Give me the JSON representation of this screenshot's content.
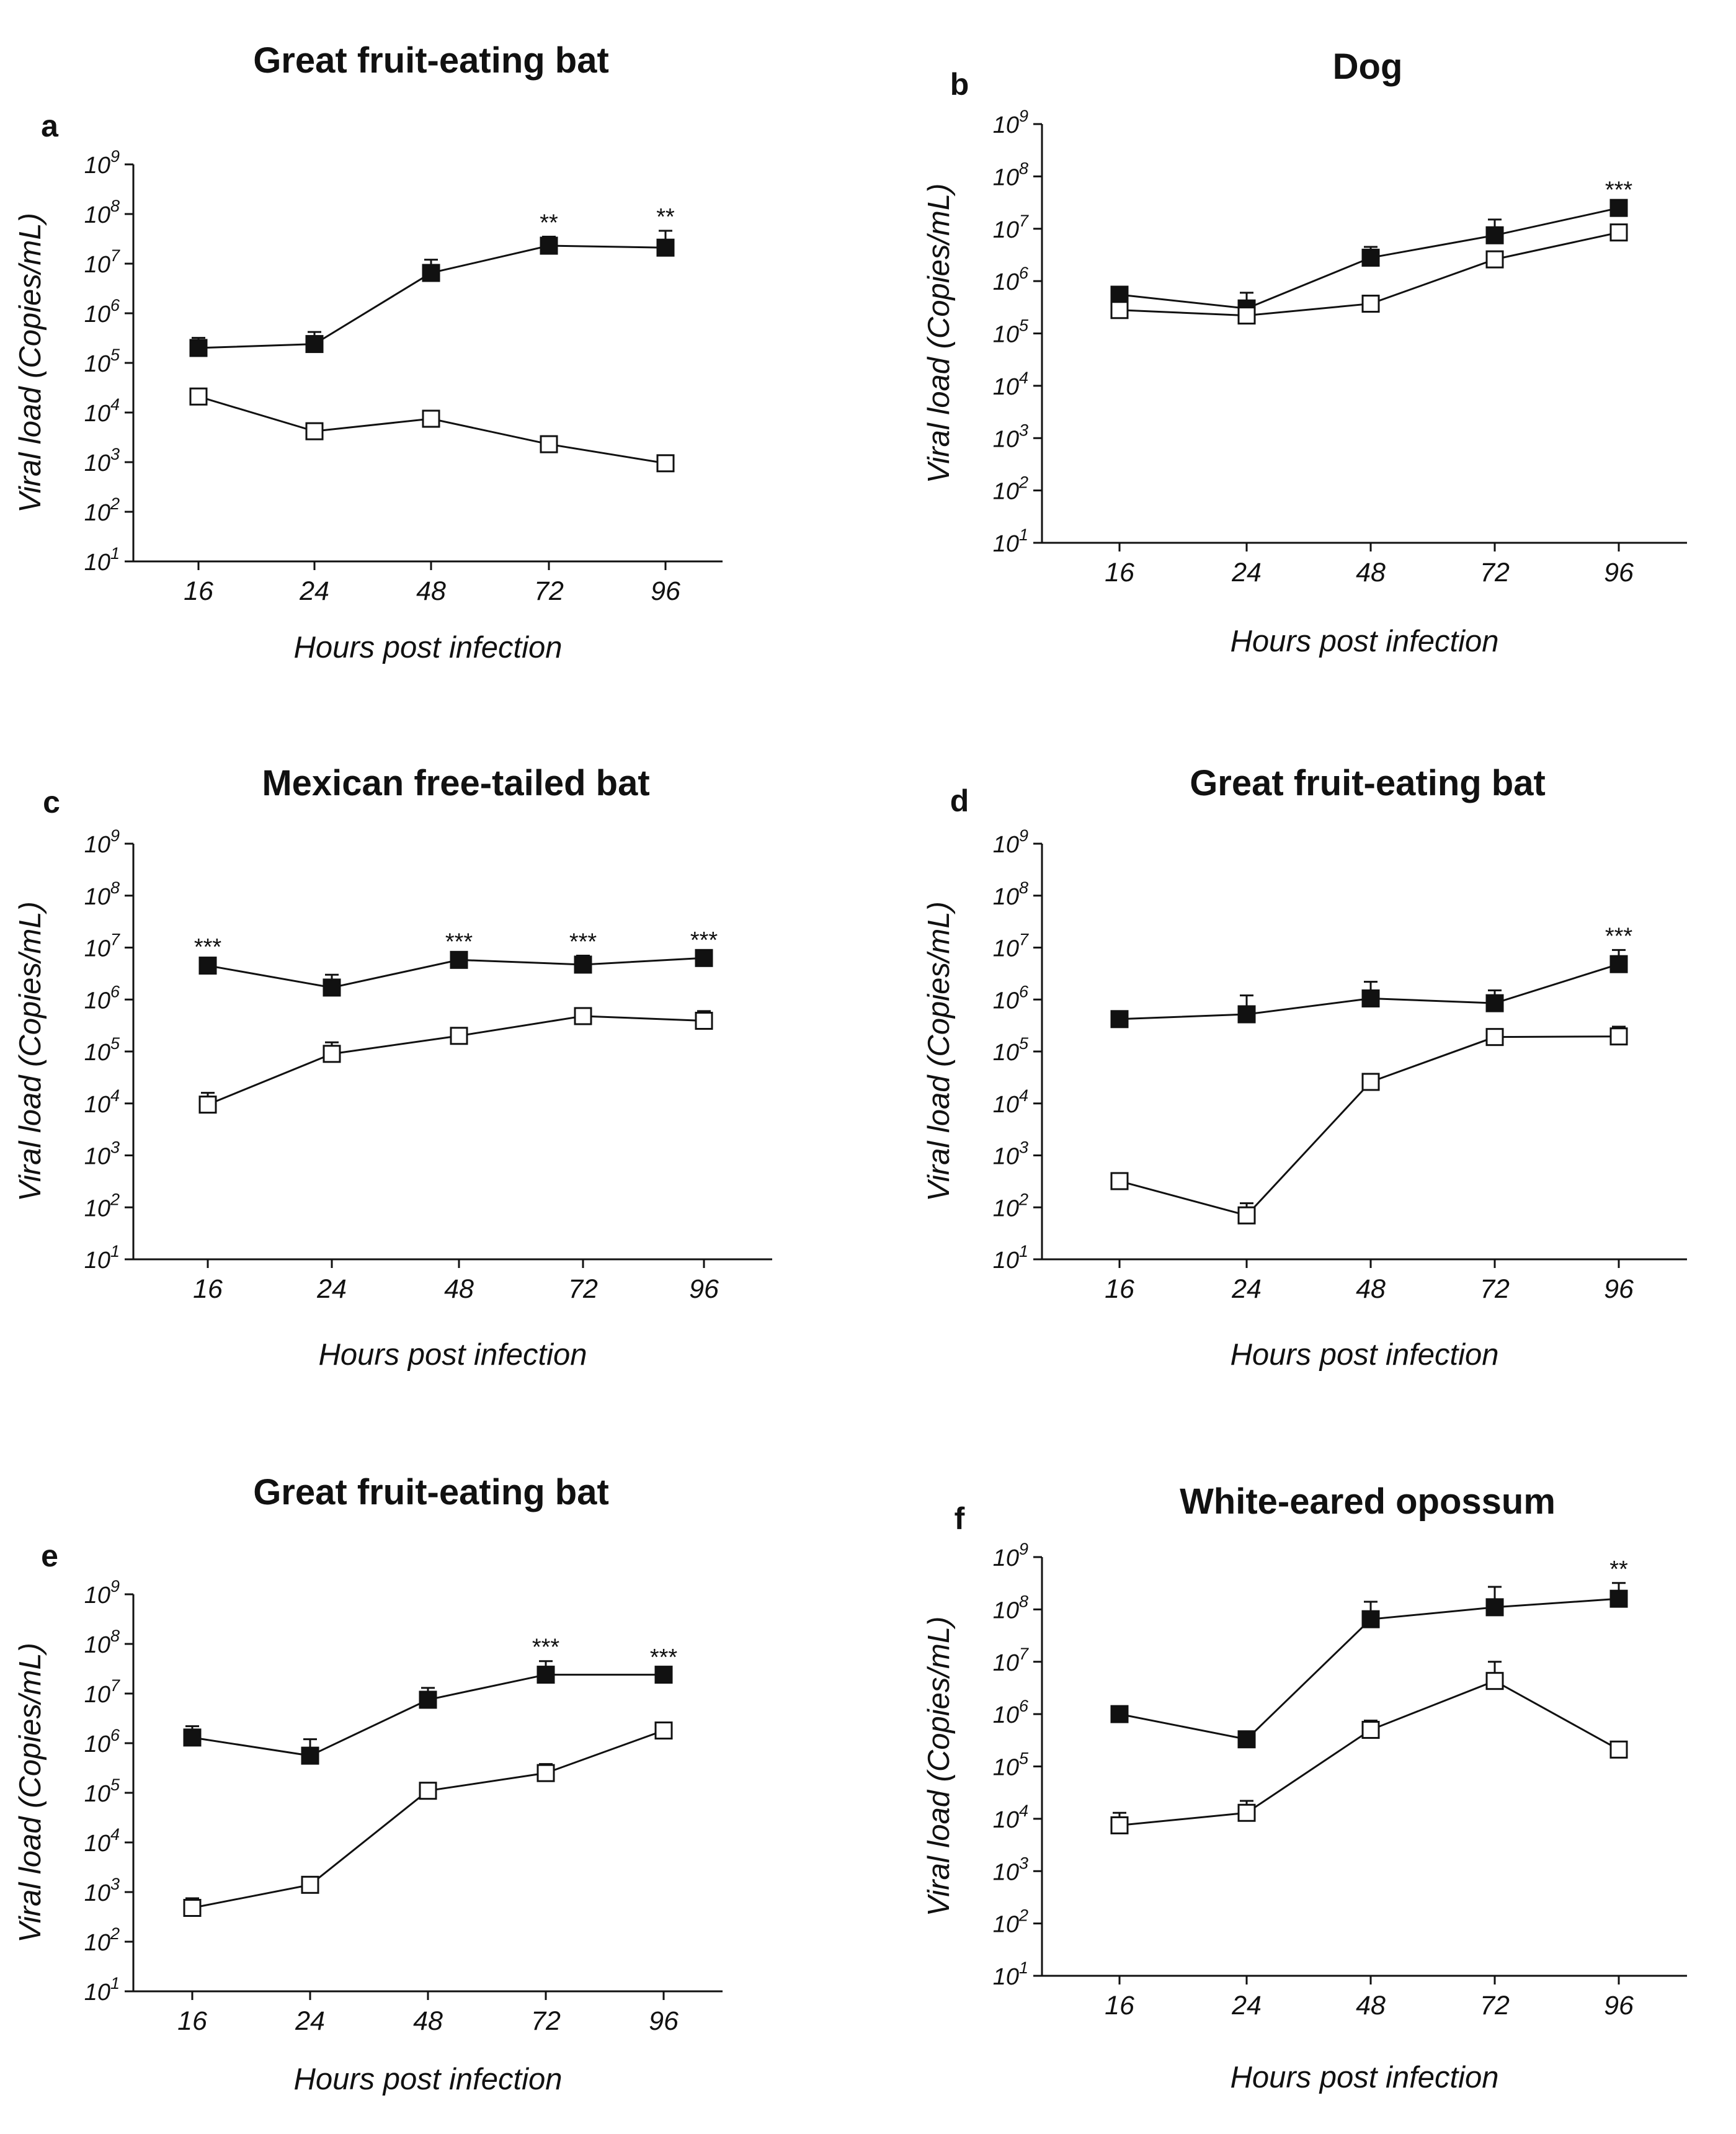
{
  "chart_data": [
    {
      "panel": "a",
      "type": "line",
      "title": "Great fruit-eating bat",
      "xlabel": "Hours post infection",
      "ylabel": "Viral load (Copies/mL)",
      "categories": [
        "16",
        "24",
        "48",
        "72",
        "96"
      ],
      "y_scale": "log10",
      "ylim": [
        10,
        1000000000
      ],
      "y_ticks": [
        {
          "base": "10",
          "exp": "1"
        },
        {
          "base": "10",
          "exp": "2"
        },
        {
          "base": "10",
          "exp": "3"
        },
        {
          "base": "10",
          "exp": "4"
        },
        {
          "base": "10",
          "exp": "5"
        },
        {
          "base": "10",
          "exp": "6"
        },
        {
          "base": "10",
          "exp": "7"
        },
        {
          "base": "10",
          "exp": "8"
        },
        {
          "base": "10",
          "exp": "9"
        }
      ],
      "series": [
        {
          "marker": "filled-square",
          "values": [
            200000,
            240000,
            6500000,
            23000000,
            21000000
          ],
          "error_upper": [
            320000,
            420000,
            12000000,
            35000000,
            46000000
          ]
        },
        {
          "marker": "open-square",
          "values": [
            21000,
            4200,
            7500,
            2300,
            950
          ],
          "error_upper": [
            30000,
            5500,
            9000,
            2800,
            1100
          ]
        }
      ],
      "annotations": [
        {
          "category": "72",
          "text": "**"
        },
        {
          "category": "96",
          "text": "**"
        }
      ]
    },
    {
      "panel": "b",
      "type": "line",
      "title": "Dog",
      "xlabel": "Hours post infection",
      "ylabel": "Viral load (Copies/mL)",
      "categories": [
        "16",
        "24",
        "48",
        "72",
        "96"
      ],
      "y_scale": "log10",
      "ylim": [
        10,
        1000000000
      ],
      "y_ticks": [
        {
          "base": "10",
          "exp": "1"
        },
        {
          "base": "10",
          "exp": "2"
        },
        {
          "base": "10",
          "exp": "3"
        },
        {
          "base": "10",
          "exp": "4"
        },
        {
          "base": "10",
          "exp": "5"
        },
        {
          "base": "10",
          "exp": "6"
        },
        {
          "base": "10",
          "exp": "7"
        },
        {
          "base": "10",
          "exp": "8"
        },
        {
          "base": "10",
          "exp": "9"
        }
      ],
      "series": [
        {
          "marker": "filled-square",
          "values": [
            550000,
            300000,
            2800000,
            7500000,
            25000000
          ],
          "error_upper": [
            750000,
            600000,
            4500000,
            15000000,
            30000000
          ]
        },
        {
          "marker": "open-square",
          "values": [
            280000,
            220000,
            370000,
            2600000,
            8500000
          ],
          "error_upper": [
            320000,
            260000,
            420000,
            3500000,
            10000000
          ]
        }
      ],
      "annotations": [
        {
          "category": "96",
          "text": "***"
        }
      ]
    },
    {
      "panel": "c",
      "type": "line",
      "title": "Mexican free-tailed bat",
      "xlabel": "Hours post infection",
      "ylabel": "Viral load (Copies/mL)",
      "categories": [
        "16",
        "24",
        "48",
        "72",
        "96"
      ],
      "y_scale": "log10",
      "ylim": [
        10,
        1000000000
      ],
      "y_ticks": [
        {
          "base": "10",
          "exp": "1"
        },
        {
          "base": "10",
          "exp": "2"
        },
        {
          "base": "10",
          "exp": "3"
        },
        {
          "base": "10",
          "exp": "4"
        },
        {
          "base": "10",
          "exp": "5"
        },
        {
          "base": "10",
          "exp": "6"
        },
        {
          "base": "10",
          "exp": "7"
        },
        {
          "base": "10",
          "exp": "8"
        },
        {
          "base": "10",
          "exp": "9"
        }
      ],
      "series": [
        {
          "marker": "filled-square",
          "values": [
            4500000,
            1700000,
            5800000,
            4700000,
            6300000
          ],
          "error_upper": [
            5500000,
            3000000,
            7000000,
            7000000,
            7500000
          ]
        },
        {
          "marker": "open-square",
          "values": [
            9500,
            90000,
            200000,
            480000,
            390000
          ],
          "error_upper": [
            16000,
            150000,
            240000,
            600000,
            600000
          ]
        }
      ],
      "annotations": [
        {
          "category": "16",
          "text": "***"
        },
        {
          "category": "48",
          "text": "***"
        },
        {
          "category": "72",
          "text": "***"
        },
        {
          "category": "96",
          "text": "***"
        }
      ]
    },
    {
      "panel": "d",
      "type": "line",
      "title": "Great fruit-eating bat",
      "xlabel": "Hours post infection",
      "ylabel": "Viral load (Copies/mL)",
      "categories": [
        "16",
        "24",
        "48",
        "72",
        "96"
      ],
      "y_scale": "log10",
      "ylim": [
        10,
        1000000000
      ],
      "y_ticks": [
        {
          "base": "10",
          "exp": "1"
        },
        {
          "base": "10",
          "exp": "2"
        },
        {
          "base": "10",
          "exp": "3"
        },
        {
          "base": "10",
          "exp": "4"
        },
        {
          "base": "10",
          "exp": "5"
        },
        {
          "base": "10",
          "exp": "6"
        },
        {
          "base": "10",
          "exp": "7"
        },
        {
          "base": "10",
          "exp": "8"
        },
        {
          "base": "10",
          "exp": "9"
        }
      ],
      "series": [
        {
          "marker": "filled-square",
          "values": [
            420000,
            520000,
            1050000,
            850000,
            4800000
          ],
          "error_upper": [
            550000,
            1200000,
            2200000,
            1500000,
            9000000
          ]
        },
        {
          "marker": "open-square",
          "values": [
            320,
            70,
            26000,
            190000,
            195000
          ],
          "error_upper": [
            450,
            120,
            32000,
            240000,
            300000
          ]
        }
      ],
      "annotations": [
        {
          "category": "96",
          "text": "***"
        }
      ]
    },
    {
      "panel": "e",
      "type": "line",
      "title": "Great fruit-eating bat",
      "xlabel": "Hours post infection",
      "ylabel": "Viral load (Copies/mL)",
      "categories": [
        "16",
        "24",
        "48",
        "72",
        "96"
      ],
      "y_scale": "log10",
      "ylim": [
        10,
        1000000000
      ],
      "y_ticks": [
        {
          "base": "10",
          "exp": "1"
        },
        {
          "base": "10",
          "exp": "2"
        },
        {
          "base": "10",
          "exp": "3"
        },
        {
          "base": "10",
          "exp": "4"
        },
        {
          "base": "10",
          "exp": "5"
        },
        {
          "base": "10",
          "exp": "6"
        },
        {
          "base": "10",
          "exp": "7"
        },
        {
          "base": "10",
          "exp": "8"
        },
        {
          "base": "10",
          "exp": "9"
        }
      ],
      "series": [
        {
          "marker": "filled-square",
          "values": [
            1300000,
            560000,
            7500000,
            24000000,
            24000000
          ],
          "error_upper": [
            2200000,
            1200000,
            13000000,
            45000000,
            28000000
          ]
        },
        {
          "marker": "open-square",
          "values": [
            480,
            1400,
            110000,
            250000,
            1800000
          ],
          "error_upper": [
            750,
            1800,
            130000,
            380000,
            2100000
          ]
        }
      ],
      "annotations": [
        {
          "category": "72",
          "text": "***"
        },
        {
          "category": "96",
          "text": "***"
        }
      ]
    },
    {
      "panel": "f",
      "type": "line",
      "title": "White-eared opossum",
      "xlabel": "Hours post infection",
      "ylabel": "Viral load (Copies/mL)",
      "categories": [
        "16",
        "24",
        "48",
        "72",
        "96"
      ],
      "y_scale": "log10",
      "ylim": [
        10,
        1000000000
      ],
      "y_ticks": [
        {
          "base": "10",
          "exp": "1"
        },
        {
          "base": "10",
          "exp": "2"
        },
        {
          "base": "10",
          "exp": "3"
        },
        {
          "base": "10",
          "exp": "4"
        },
        {
          "base": "10",
          "exp": "5"
        },
        {
          "base": "10",
          "exp": "6"
        },
        {
          "base": "10",
          "exp": "7"
        },
        {
          "base": "10",
          "exp": "8"
        },
        {
          "base": "10",
          "exp": "9"
        }
      ],
      "series": [
        {
          "marker": "filled-square",
          "values": [
            1000000,
            330000,
            65000000,
            110000000,
            160000000
          ],
          "error_upper": [
            1250000,
            380000,
            140000000,
            270000000,
            320000000
          ]
        },
        {
          "marker": "open-square",
          "values": [
            7500,
            13000,
            500000,
            4300000,
            210000
          ],
          "error_upper": [
            13000,
            22000,
            750000,
            10000000,
            240000
          ]
        }
      ],
      "annotations": [
        {
          "category": "96",
          "text": "**"
        }
      ]
    }
  ]
}
